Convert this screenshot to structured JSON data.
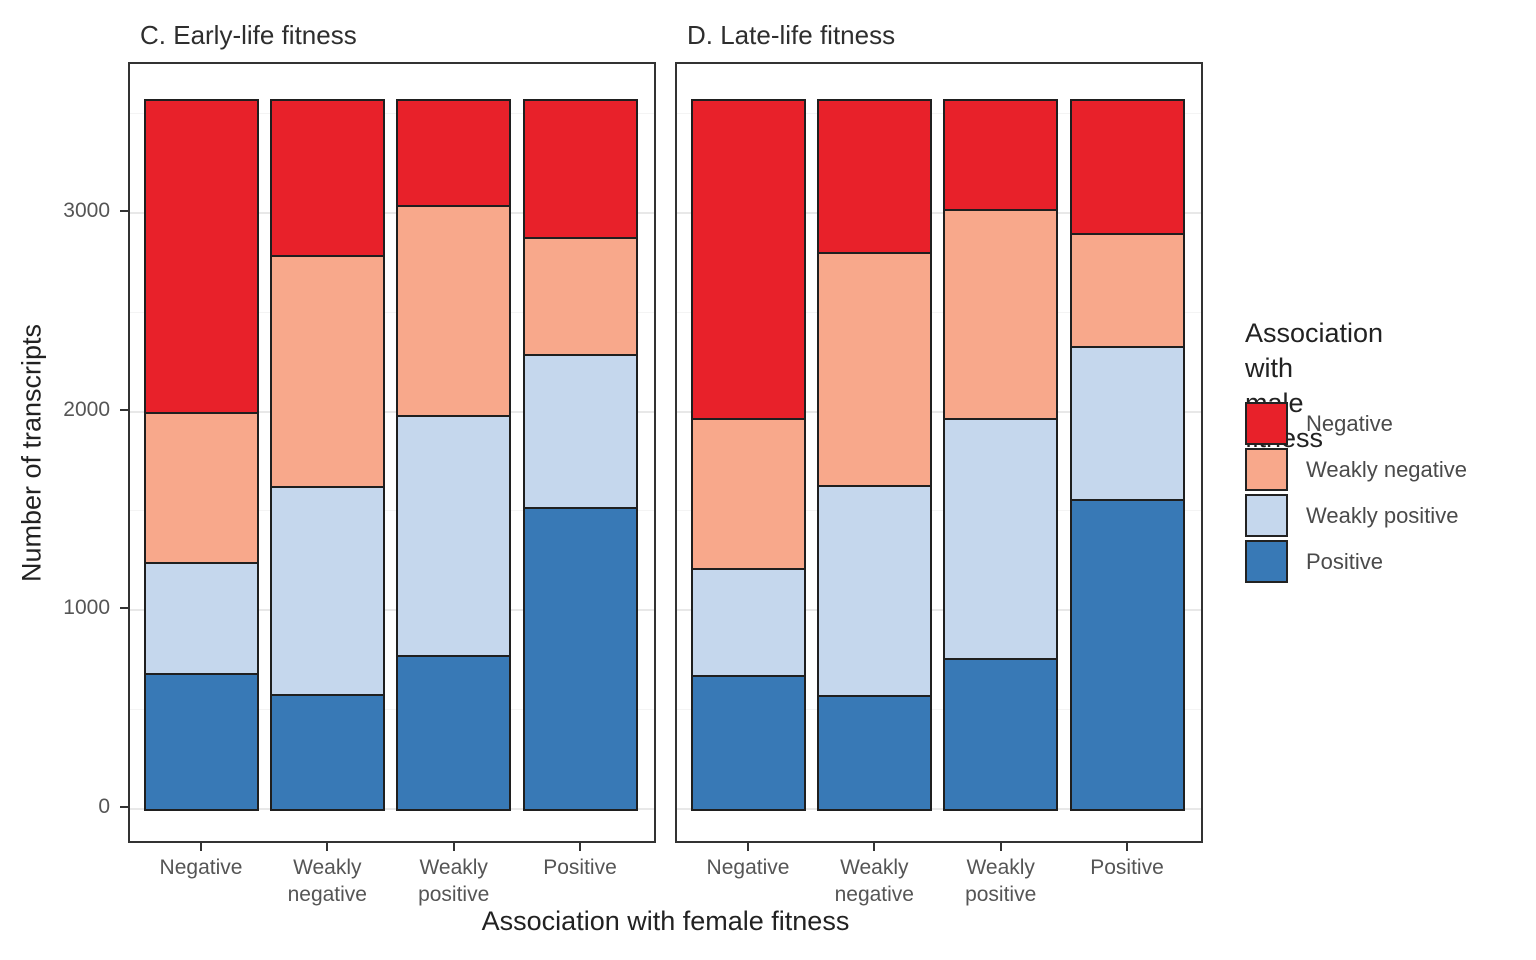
{
  "figure": {
    "y_axis": {
      "title": "Number of transcripts"
    },
    "x_axis": {
      "title": "Association with female fitness"
    },
    "legend": {
      "title": "Association with\nmale fitness",
      "entries": [
        {
          "label": "Negative",
          "color": "#E8212A"
        },
        {
          "label": "Weakly negative",
          "color": "#F8A88B"
        },
        {
          "label": "Weakly positive",
          "color": "#C5D7ED"
        },
        {
          "label": "Positive",
          "color": "#3879B6"
        }
      ]
    }
  },
  "chart_data": [
    {
      "type": "bar",
      "stacked": true,
      "stack_order": "bottom-to-top",
      "title": "C. Early-life fitness",
      "categories": [
        "Negative",
        "Weakly\nnegative",
        "Weakly\npositive",
        "Positive"
      ],
      "series": [
        {
          "name": "Positive",
          "color": "#3879B6",
          "values": [
            685,
            580,
            775,
            1520
          ]
        },
        {
          "name": "Weakly positive",
          "color": "#C5D7ED",
          "values": [
            560,
            1045,
            1210,
            770
          ]
        },
        {
          "name": "Weakly negative",
          "color": "#F8A88B",
          "values": [
            755,
            1165,
            1055,
            590
          ]
        },
        {
          "name": "Negative",
          "color": "#E8212A",
          "values": [
            1575,
            785,
            535,
            695
          ]
        }
      ],
      "xlabel": "Association with female fitness",
      "ylabel": "Number of transcripts",
      "ylim": [
        0,
        3750
      ],
      "yticks": [
        0,
        1000,
        2000,
        3000
      ],
      "yticks_minor": [
        500,
        1500,
        2500,
        3500
      ],
      "grid": true,
      "legend_position": "right"
    },
    {
      "type": "bar",
      "stacked": true,
      "stack_order": "bottom-to-top",
      "title": "D. Late-life fitness",
      "categories": [
        "Negative",
        "Weakly\nnegative",
        "Weakly\npositive",
        "Positive"
      ],
      "series": [
        {
          "name": "Positive",
          "color": "#3879B6",
          "values": [
            675,
            575,
            760,
            1560
          ]
        },
        {
          "name": "Weakly positive",
          "color": "#C5D7ED",
          "values": [
            540,
            1055,
            1210,
            770
          ]
        },
        {
          "name": "Weakly negative",
          "color": "#F8A88B",
          "values": [
            755,
            1175,
            1050,
            570
          ]
        },
        {
          "name": "Negative",
          "color": "#E8212A",
          "values": [
            1605,
            770,
            555,
            675
          ]
        }
      ],
      "xlabel": "Association with female fitness",
      "ylabel": "Number of transcripts",
      "ylim": [
        0,
        3750
      ],
      "yticks": [
        0,
        1000,
        2000,
        3000
      ],
      "yticks_minor": [
        500,
        1500,
        2500,
        3500
      ],
      "grid": true,
      "legend_position": "right"
    }
  ]
}
